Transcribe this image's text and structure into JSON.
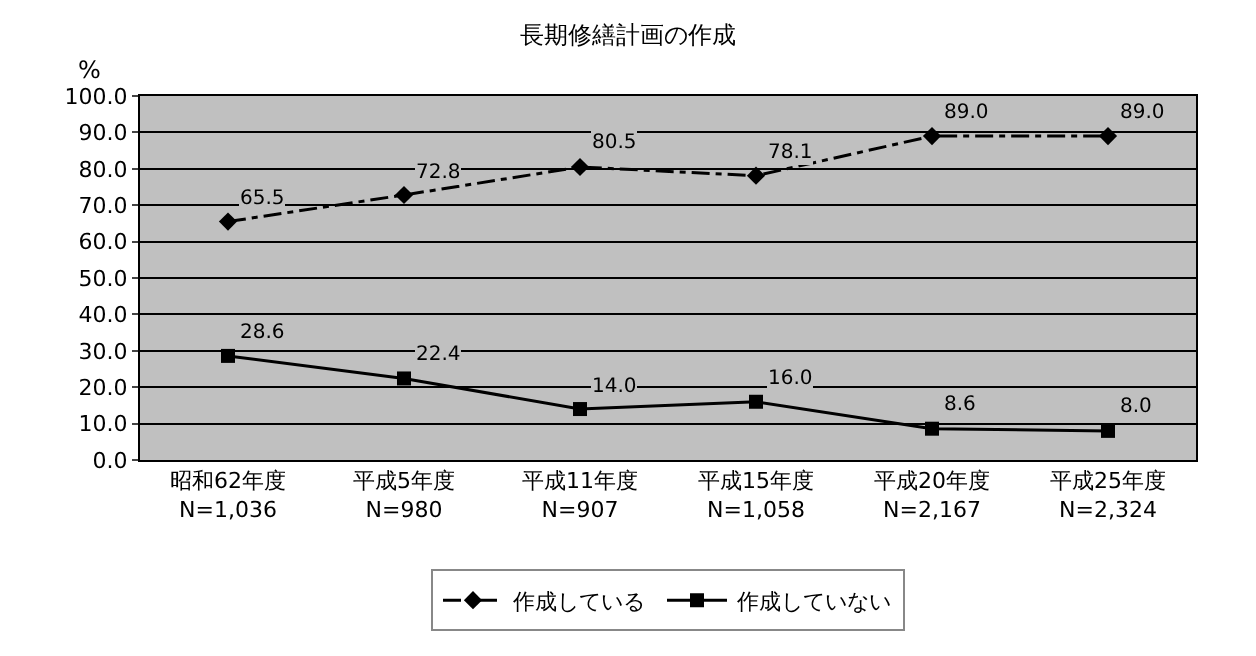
{
  "chart_data": {
    "type": "line",
    "title": "長期修繕計画の作成",
    "ylabel": "%",
    "categories": [
      "昭和62年度\nN=1,036",
      "平成5年度\nN=980",
      "平成11年度\nN=907",
      "平成15年度\nN=1,058",
      "平成20年度\nN=2,167",
      "平成25年度\nN=2,324"
    ],
    "series": [
      {
        "name": "作成している",
        "color": "#000000",
        "marker": "diamond",
        "line_style": "dashed",
        "values": [
          65.5,
          72.8,
          80.5,
          78.1,
          89.0,
          89.0
        ],
        "value_labels": [
          "65.5",
          "72.8",
          "80.5",
          "78.1",
          "89.0",
          "89.0"
        ]
      },
      {
        "name": "作成していない",
        "color": "#000000",
        "marker": "square",
        "line_style": "solid",
        "values": [
          28.6,
          22.4,
          14.0,
          16.0,
          8.6,
          8.0
        ],
        "value_labels": [
          "28.6",
          "22.4",
          "14.0",
          "16.0",
          "8.6",
          "8.0"
        ]
      }
    ],
    "ylim": [
      0,
      100
    ],
    "yticks": [
      {
        "value": 0,
        "label": "0.0"
      },
      {
        "value": 10,
        "label": "10.0"
      },
      {
        "value": 20,
        "label": "20.0"
      },
      {
        "value": 30,
        "label": "30.0"
      },
      {
        "value": 40,
        "label": "40.0"
      },
      {
        "value": 50,
        "label": "50.0"
      },
      {
        "value": 60,
        "label": "60.0"
      },
      {
        "value": 70,
        "label": "70.0"
      },
      {
        "value": 80,
        "label": "80.0"
      },
      {
        "value": 90,
        "label": "90.0"
      },
      {
        "value": 100,
        "label": "100.0"
      }
    ],
    "grid": "y",
    "legend": "bottom"
  }
}
